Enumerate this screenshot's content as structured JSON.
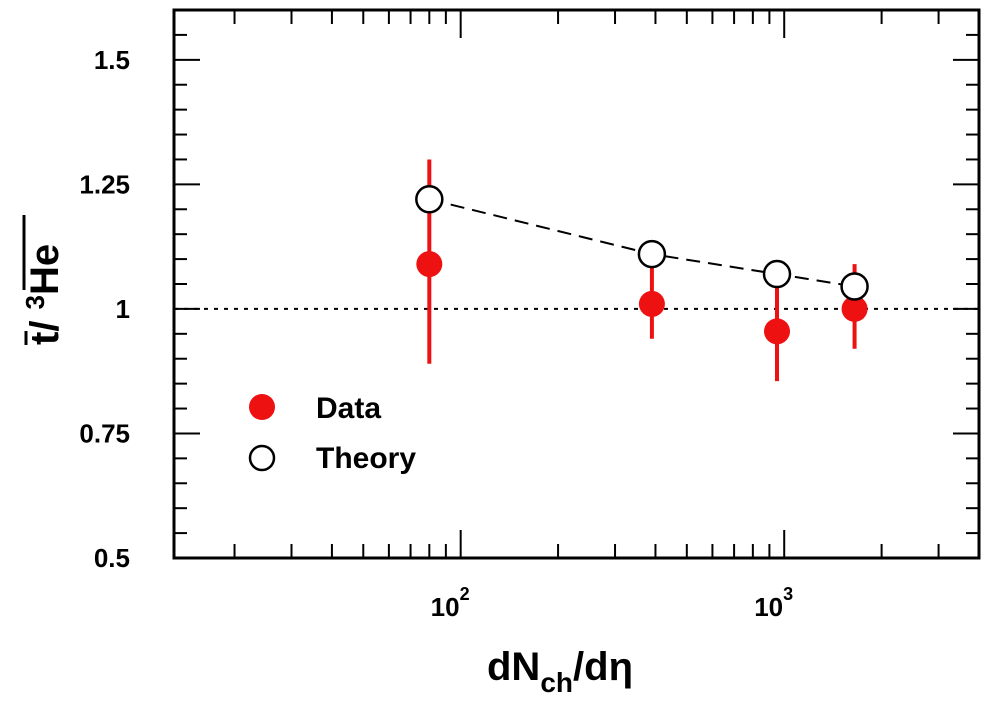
{
  "chart_data": {
    "type": "scatter",
    "x_scale": "log",
    "xlim": [
      13,
      4000
    ],
    "ylim": [
      0.5,
      1.6
    ],
    "y_ticks": [
      {
        "value": 0.5,
        "label": "0.5"
      },
      {
        "value": 0.75,
        "label": "0.75"
      },
      {
        "value": 1.0,
        "label": "1"
      },
      {
        "value": 1.25,
        "label": "1.25"
      },
      {
        "value": 1.5,
        "label": "1.5"
      }
    ],
    "x_ticks": [
      {
        "value": 100,
        "base": "10",
        "exp": "2"
      },
      {
        "value": 1000,
        "base": "10",
        "exp": "3"
      }
    ],
    "xlabel": {
      "main": "dN",
      "sub": "ch",
      "rest": "/dη"
    },
    "ylabel": {
      "part1": "t",
      "slash": "/ ",
      "sup": "3",
      "part2": "He"
    },
    "reference_line": 1.0,
    "series": [
      {
        "name": "Data",
        "marker": "filled-circle",
        "color": "#ee1111",
        "points": [
          {
            "x": 80,
            "y": 1.09,
            "err_low": 0.2,
            "err_high": 0.21
          },
          {
            "x": 390,
            "y": 1.01,
            "err_low": 0.07,
            "err_high": 0.09
          },
          {
            "x": 950,
            "y": 0.955,
            "err_low": 0.1,
            "err_high": 0.1
          },
          {
            "x": 1650,
            "y": 1.0,
            "err_low": 0.08,
            "err_high": 0.09
          }
        ]
      },
      {
        "name": "Theory",
        "marker": "open-circle",
        "color": "#000000",
        "line": "dashed",
        "points": [
          {
            "x": 80,
            "y": 1.22
          },
          {
            "x": 390,
            "y": 1.11
          },
          {
            "x": 950,
            "y": 1.07
          },
          {
            "x": 1650,
            "y": 1.045
          }
        ]
      }
    ],
    "legend": {
      "position": "bottom-left",
      "entries": [
        "Data",
        "Theory"
      ]
    }
  }
}
